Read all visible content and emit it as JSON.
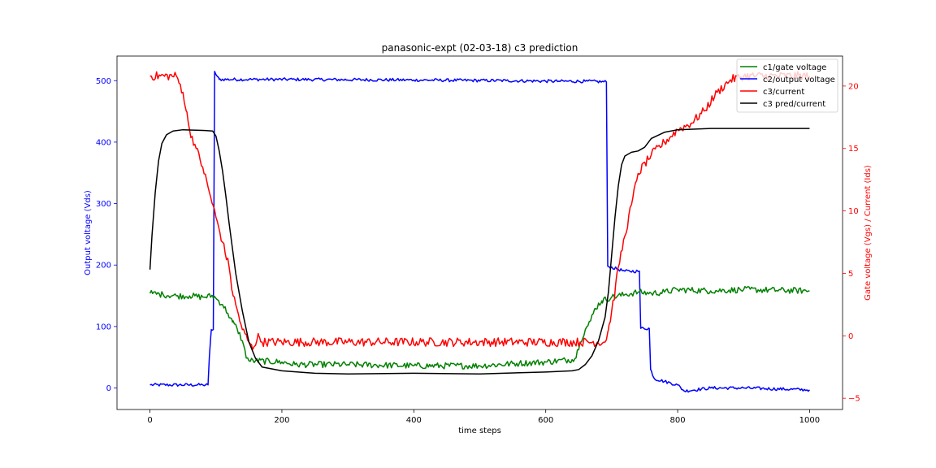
{
  "chart_data": {
    "type": "line",
    "title": "panasonic-expt (02-03-18) c3 prediction",
    "xlabel": "time steps",
    "ylabel_left": "Output voltage (Vds)",
    "ylabel_right": "Gate voltage (Vgs) / Current (Ids)",
    "xlim": [
      -50,
      1050
    ],
    "ylim_left": [
      -35,
      540
    ],
    "ylim_right": [
      -5.9,
      22.4
    ],
    "xticks": [
      0,
      200,
      400,
      600,
      800,
      1000
    ],
    "yticks_left": [
      0,
      100,
      200,
      300,
      400,
      500
    ],
    "yticks_right": [
      -5,
      0,
      5,
      10,
      15,
      20
    ],
    "left_axis_color": "#0000ff",
    "right_axis_color": "#ff0000",
    "grid": false,
    "legend_position": "top-right",
    "legend_overlap_text": "c2/output voltage",
    "series": [
      {
        "name": "c1/gate voltage",
        "color": "#008000",
        "axis": "right",
        "noise": 0.25,
        "points": [
          [
            0,
            3.4
          ],
          [
            20,
            3.3
          ],
          [
            40,
            3.2
          ],
          [
            60,
            3.2
          ],
          [
            80,
            3.1
          ],
          [
            95,
            3.2
          ],
          [
            100,
            3.0
          ],
          [
            110,
            2.5
          ],
          [
            118,
            1.8
          ],
          [
            125,
            1.1
          ],
          [
            132,
            0.6
          ],
          [
            140,
            -0.4
          ],
          [
            145,
            -1.5
          ],
          [
            150,
            -2.0
          ],
          [
            160,
            -2.0
          ],
          [
            200,
            -2.1
          ],
          [
            220,
            -2.3
          ],
          [
            300,
            -2.3
          ],
          [
            400,
            -2.4
          ],
          [
            500,
            -2.4
          ],
          [
            560,
            -2.2
          ],
          [
            600,
            -2.1
          ],
          [
            640,
            -1.9
          ],
          [
            645,
            -1.8
          ],
          [
            652,
            -0.5
          ],
          [
            660,
            0.5
          ],
          [
            668,
            1.2
          ],
          [
            675,
            2.2
          ],
          [
            685,
            2.8
          ],
          [
            700,
            3.1
          ],
          [
            720,
            3.3
          ],
          [
            740,
            3.5
          ],
          [
            760,
            3.4
          ],
          [
            780,
            3.5
          ],
          [
            800,
            3.7
          ],
          [
            850,
            3.6
          ],
          [
            900,
            3.7
          ],
          [
            1000,
            3.6
          ]
        ]
      },
      {
        "name": "c2/output voltage",
        "color": "#0000ff",
        "axis": "left",
        "noise": 2.5,
        "points": [
          [
            0,
            5
          ],
          [
            80,
            5
          ],
          [
            88,
            5
          ],
          [
            90,
            50
          ],
          [
            93,
            95
          ],
          [
            96,
            95
          ],
          [
            98,
            515
          ],
          [
            100,
            510
          ],
          [
            105,
            502
          ],
          [
            150,
            502
          ],
          [
            220,
            502
          ],
          [
            400,
            501
          ],
          [
            540,
            500
          ],
          [
            620,
            499
          ],
          [
            660,
            499
          ],
          [
            692,
            498
          ],
          [
            694,
            198
          ],
          [
            720,
            190
          ],
          [
            742,
            190
          ],
          [
            744,
            97
          ],
          [
            757,
            97
          ],
          [
            759,
            30
          ],
          [
            765,
            15
          ],
          [
            800,
            5
          ],
          [
            810,
            -5
          ],
          [
            850,
            0
          ],
          [
            900,
            0
          ],
          [
            1000,
            -3
          ]
        ]
      },
      {
        "name": "c3/current",
        "color": "#ff0000",
        "axis": "right",
        "noise": 0.35,
        "points": [
          [
            0,
            20.8
          ],
          [
            40,
            20.8
          ],
          [
            50,
            19.5
          ],
          [
            55,
            18.0
          ],
          [
            60,
            16.5
          ],
          [
            70,
            15.0
          ],
          [
            80,
            13.5
          ],
          [
            90,
            11.5
          ],
          [
            100,
            9.5
          ],
          [
            110,
            7.5
          ],
          [
            120,
            5.5
          ],
          [
            125,
            3.5
          ],
          [
            130,
            2.5
          ],
          [
            135,
            1.5
          ],
          [
            140,
            0.5
          ],
          [
            150,
            -0.5
          ],
          [
            155,
            -1.0
          ],
          [
            165,
            0.0
          ],
          [
            170,
            -0.5
          ],
          [
            690,
            -0.5
          ],
          [
            695,
            0.5
          ],
          [
            700,
            2.0
          ],
          [
            705,
            3.5
          ],
          [
            710,
            5.5
          ],
          [
            720,
            8.0
          ],
          [
            730,
            10.5
          ],
          [
            740,
            13.0
          ],
          [
            760,
            14.5
          ],
          [
            780,
            15.5
          ],
          [
            800,
            16.5
          ],
          [
            820,
            17.0
          ],
          [
            840,
            18.0
          ],
          [
            860,
            19.5
          ],
          [
            880,
            20.5
          ],
          [
            900,
            20.8
          ],
          [
            1000,
            20.8
          ]
        ]
      },
      {
        "name": "c3 pred/current",
        "color": "#000000",
        "axis": "right",
        "noise": 0,
        "points": [
          [
            0,
            5.3
          ],
          [
            3,
            8.0
          ],
          [
            8,
            11.5
          ],
          [
            13,
            14.0
          ],
          [
            18,
            15.4
          ],
          [
            25,
            16.1
          ],
          [
            35,
            16.4
          ],
          [
            50,
            16.5
          ],
          [
            80,
            16.45
          ],
          [
            95,
            16.4
          ],
          [
            100,
            16.0
          ],
          [
            105,
            14.8
          ],
          [
            110,
            13.2
          ],
          [
            115,
            11.2
          ],
          [
            120,
            9.0
          ],
          [
            125,
            7.0
          ],
          [
            130,
            5.0
          ],
          [
            140,
            2.0
          ],
          [
            150,
            -0.5
          ],
          [
            160,
            -1.8
          ],
          [
            170,
            -2.5
          ],
          [
            200,
            -2.8
          ],
          [
            250,
            -3.0
          ],
          [
            300,
            -3.05
          ],
          [
            400,
            -3.0
          ],
          [
            500,
            -3.05
          ],
          [
            600,
            -2.9
          ],
          [
            640,
            -2.8
          ],
          [
            650,
            -2.7
          ],
          [
            660,
            -2.3
          ],
          [
            670,
            -1.6
          ],
          [
            680,
            -0.4
          ],
          [
            690,
            1.5
          ],
          [
            695,
            3.5
          ],
          [
            700,
            6.5
          ],
          [
            705,
            9.5
          ],
          [
            710,
            12.0
          ],
          [
            715,
            13.7
          ],
          [
            720,
            14.4
          ],
          [
            730,
            14.7
          ],
          [
            740,
            14.8
          ],
          [
            750,
            15.1
          ],
          [
            760,
            15.8
          ],
          [
            780,
            16.3
          ],
          [
            800,
            16.5
          ],
          [
            850,
            16.6
          ],
          [
            900,
            16.6
          ],
          [
            1000,
            16.6
          ]
        ]
      }
    ]
  }
}
